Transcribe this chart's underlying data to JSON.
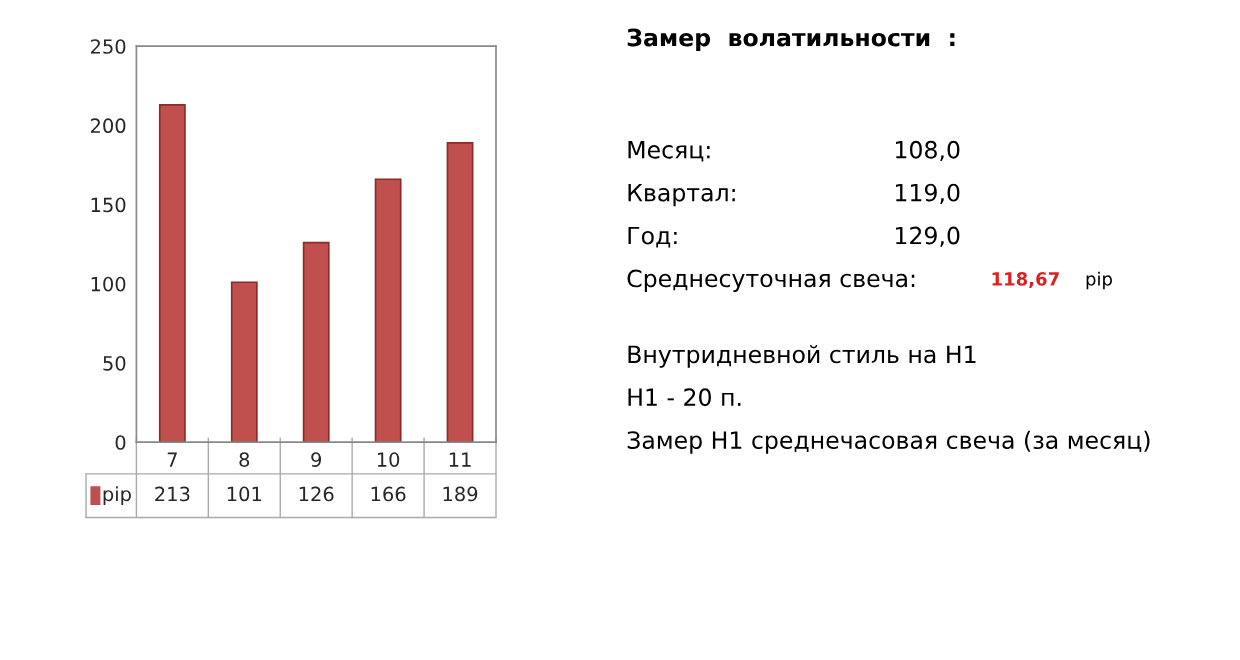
{
  "chart_data": {
    "type": "bar",
    "categories": [
      "7",
      "8",
      "9",
      "10",
      "11"
    ],
    "series": [
      {
        "name": "pip",
        "color": "#c0504d",
        "values": [
          213,
          101,
          126,
          166,
          189
        ]
      }
    ],
    "ylim": [
      0,
      250
    ],
    "yticks": [
      0,
      50,
      100,
      150,
      200,
      250
    ],
    "data_labels": true,
    "annotations": [
      "Замер  волатильности  :",
      "Месяц:",
      "108,0",
      "Квартал:",
      "119,0",
      "Год:",
      "129,0",
      "Среднесуточная свеча:",
      "118,67",
      "pip",
      "Внутридневной стиль на H1",
      "H1 - 20 п.",
      "Замер H1 среднечасовая свеча (за месяц)"
    ]
  }
}
